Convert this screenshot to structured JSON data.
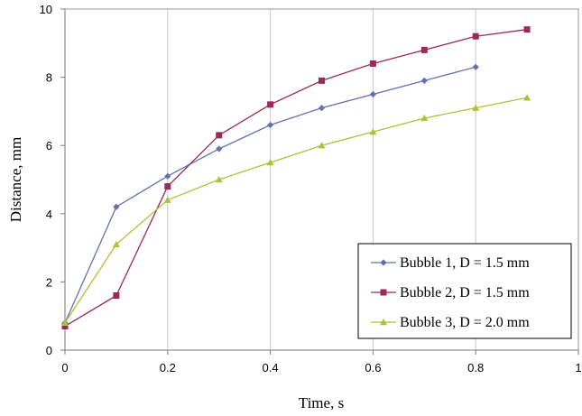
{
  "chart_data": {
    "type": "line",
    "xlabel": "Time, s",
    "ylabel": "Distance, mm",
    "xlim": [
      0,
      1
    ],
    "ylim": [
      0,
      10
    ],
    "xticks": [
      "0",
      "0.2",
      "0.4",
      "0.6",
      "0.8",
      "1"
    ],
    "yticks": [
      "0",
      "2",
      "4",
      "6",
      "8",
      "10"
    ],
    "grid": "vertical",
    "legend": "bottom-right",
    "series": [
      {
        "name": "Bubble 1, D = 1.5 mm",
        "color": "#6670b0",
        "marker": "diamond",
        "x": [
          0,
          0.1,
          0.2,
          0.3,
          0.4,
          0.5,
          0.6,
          0.7,
          0.8
        ],
        "y": [
          0.8,
          4.2,
          5.1,
          5.9,
          6.6,
          7.1,
          7.5,
          7.9,
          8.3
        ]
      },
      {
        "name": "Bubble 2, D = 1.5 mm",
        "color": "#9b2a5c",
        "marker": "square",
        "x": [
          0,
          0.1,
          0.2,
          0.3,
          0.4,
          0.5,
          0.6,
          0.7,
          0.8,
          0.9
        ],
        "y": [
          0.7,
          1.6,
          4.8,
          6.3,
          7.2,
          7.9,
          8.4,
          8.8,
          9.2,
          9.4
        ]
      },
      {
        "name": "Bubble 3, D = 2.0 mm",
        "color": "#a8c43a",
        "marker": "triangle",
        "x": [
          0,
          0.1,
          0.2,
          0.3,
          0.4,
          0.5,
          0.6,
          0.7,
          0.8,
          0.9
        ],
        "y": [
          0.8,
          3.1,
          4.4,
          5.0,
          5.5,
          6.0,
          6.4,
          6.8,
          7.1,
          7.4
        ]
      }
    ]
  }
}
